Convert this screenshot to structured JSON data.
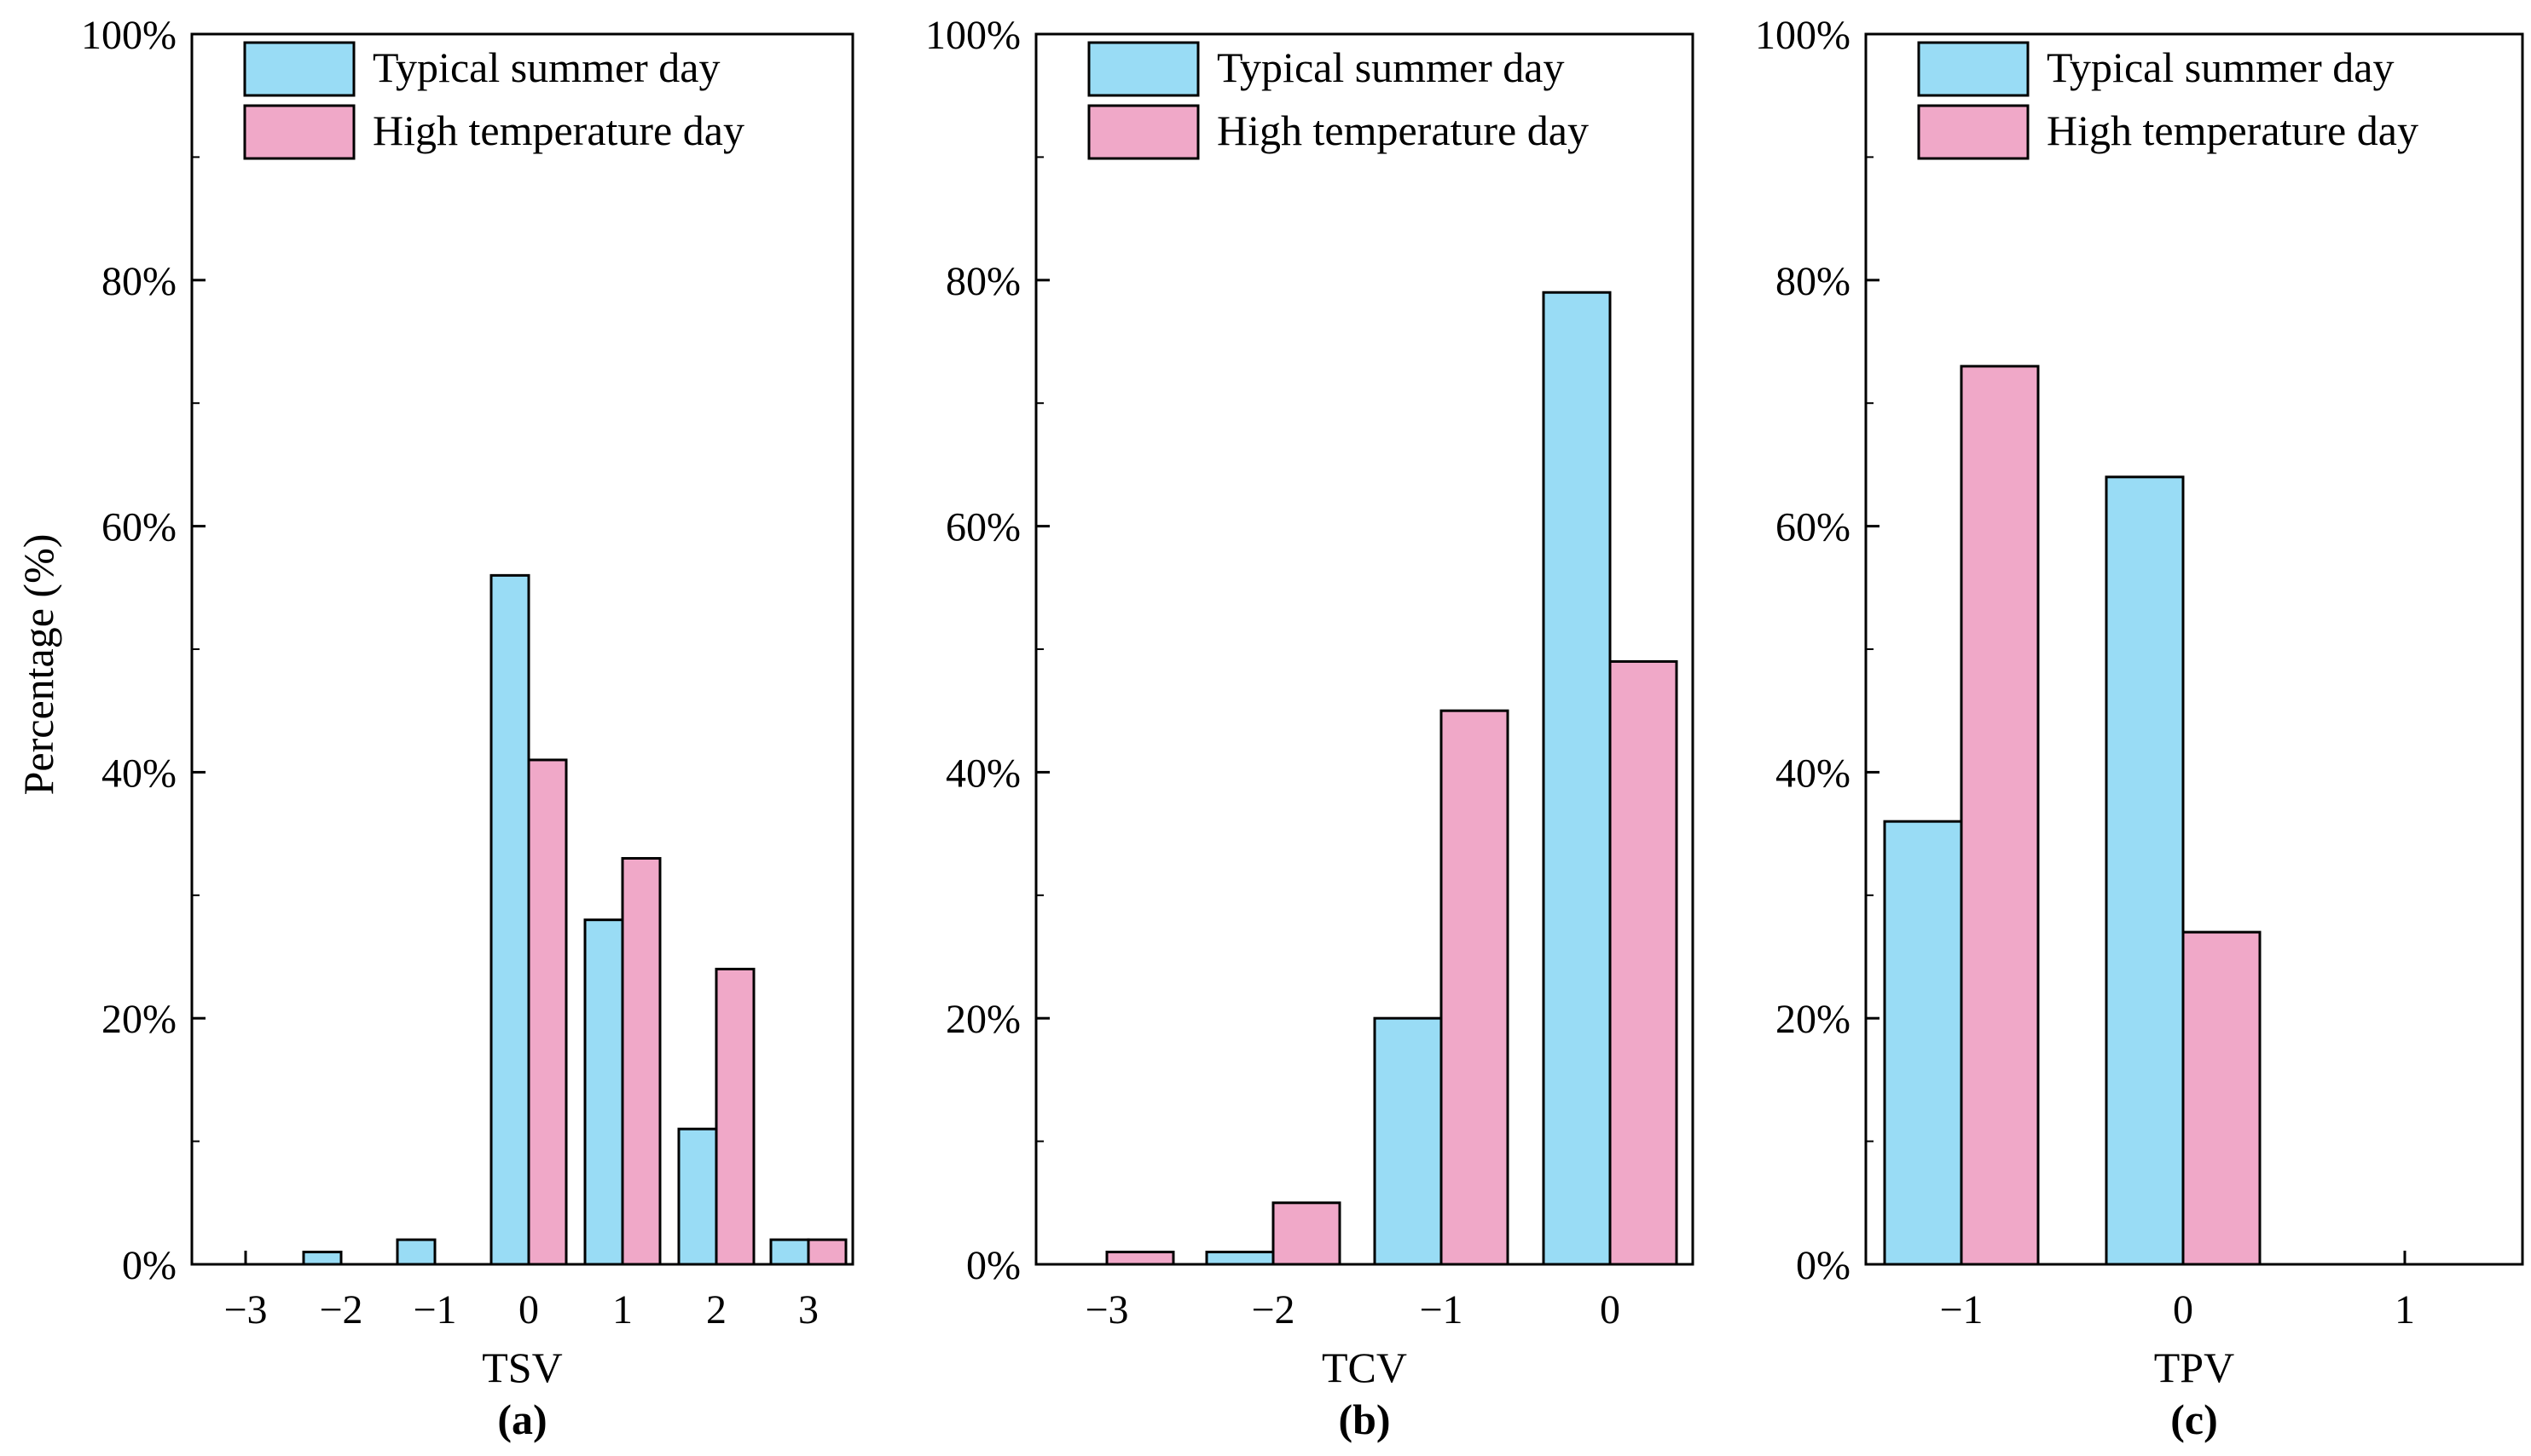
{
  "colors": {
    "typical": "#99dcf5",
    "high": "#f0a8c8",
    "stroke": "#000000"
  },
  "y_axis_label": "Percentage (%)",
  "legend": [
    "Typical summer day",
    "High temperature day"
  ],
  "chart_data": [
    {
      "type": "bar",
      "panel": "(a)",
      "xlabel": "TSV",
      "ylabel": "Percentage (%)",
      "categories": [
        "−3",
        "−2",
        "−1",
        "0",
        "1",
        "2",
        "3"
      ],
      "series": [
        {
          "name": "Typical summer day",
          "values": [
            0,
            1,
            2,
            56,
            28,
            11,
            2
          ]
        },
        {
          "name": "High temperature day",
          "values": [
            0,
            0,
            0,
            41,
            33,
            24,
            2
          ]
        }
      ],
      "yticks": [
        "0%",
        "20%",
        "40%",
        "60%",
        "80%",
        "100%"
      ],
      "ylim": [
        0,
        100
      ],
      "legend_position": "top-right"
    },
    {
      "type": "bar",
      "panel": "(b)",
      "xlabel": "TCV",
      "ylabel": "",
      "categories": [
        "−3",
        "−2",
        "−1",
        "0"
      ],
      "series": [
        {
          "name": "Typical summer day",
          "values": [
            0,
            1,
            20,
            79
          ]
        },
        {
          "name": "High temperature day",
          "values": [
            1,
            5,
            45,
            49
          ]
        }
      ],
      "yticks": [
        "0%",
        "20%",
        "40%",
        "60%",
        "80%",
        "100%"
      ],
      "ylim": [
        0,
        100
      ],
      "legend_position": "top-right"
    },
    {
      "type": "bar",
      "panel": "(c)",
      "xlabel": "TPV",
      "ylabel": "",
      "categories": [
        "−1",
        "0",
        "1"
      ],
      "series": [
        {
          "name": "Typical summer day",
          "values": [
            36,
            64,
            0
          ]
        },
        {
          "name": "High temperature day",
          "values": [
            73,
            27,
            0
          ]
        }
      ],
      "yticks": [
        "0%",
        "20%",
        "40%",
        "60%",
        "80%",
        "100%"
      ],
      "ylim": [
        0,
        100
      ],
      "legend_position": "top-right"
    }
  ]
}
